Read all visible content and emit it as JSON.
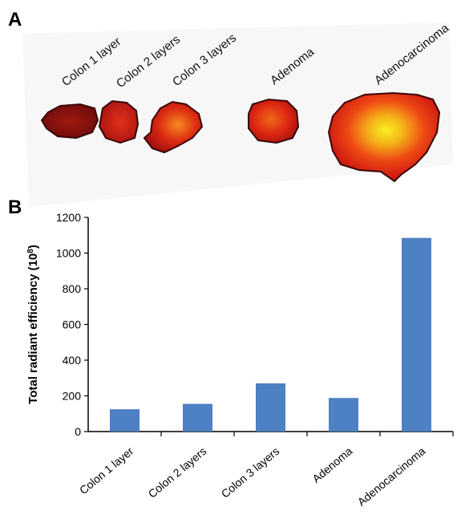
{
  "panels": {
    "a_letter": "A",
    "b_letter": "B"
  },
  "image_panel": {
    "labels": [
      "Colon 1 layer",
      "Colon 2 layers",
      "Colon 3 layers",
      "Adenoma",
      "Adenocarcinoma"
    ],
    "colors": {
      "dark": "#7a0d0d",
      "red": "#d41a0e",
      "orange": "#f06a0a",
      "yellow": "#f5e21a"
    }
  },
  "chart_data": {
    "type": "bar",
    "categories": [
      "Colon 1 layer",
      "Colon 2 layers",
      "Colon 3 layers",
      "Adenoma",
      "Adenocarcinoma"
    ],
    "values": [
      125,
      155,
      270,
      188,
      1085
    ],
    "ylabel_main": "Total radiant efficiency (10",
    "ylabel_exp": "8",
    "ylabel_end": ")",
    "ylim": [
      0,
      1200
    ],
    "yticks": [
      0,
      200,
      400,
      600,
      800,
      1000,
      1200
    ],
    "bar_color": "#4e80c4",
    "grid": false,
    "legend": "none"
  }
}
